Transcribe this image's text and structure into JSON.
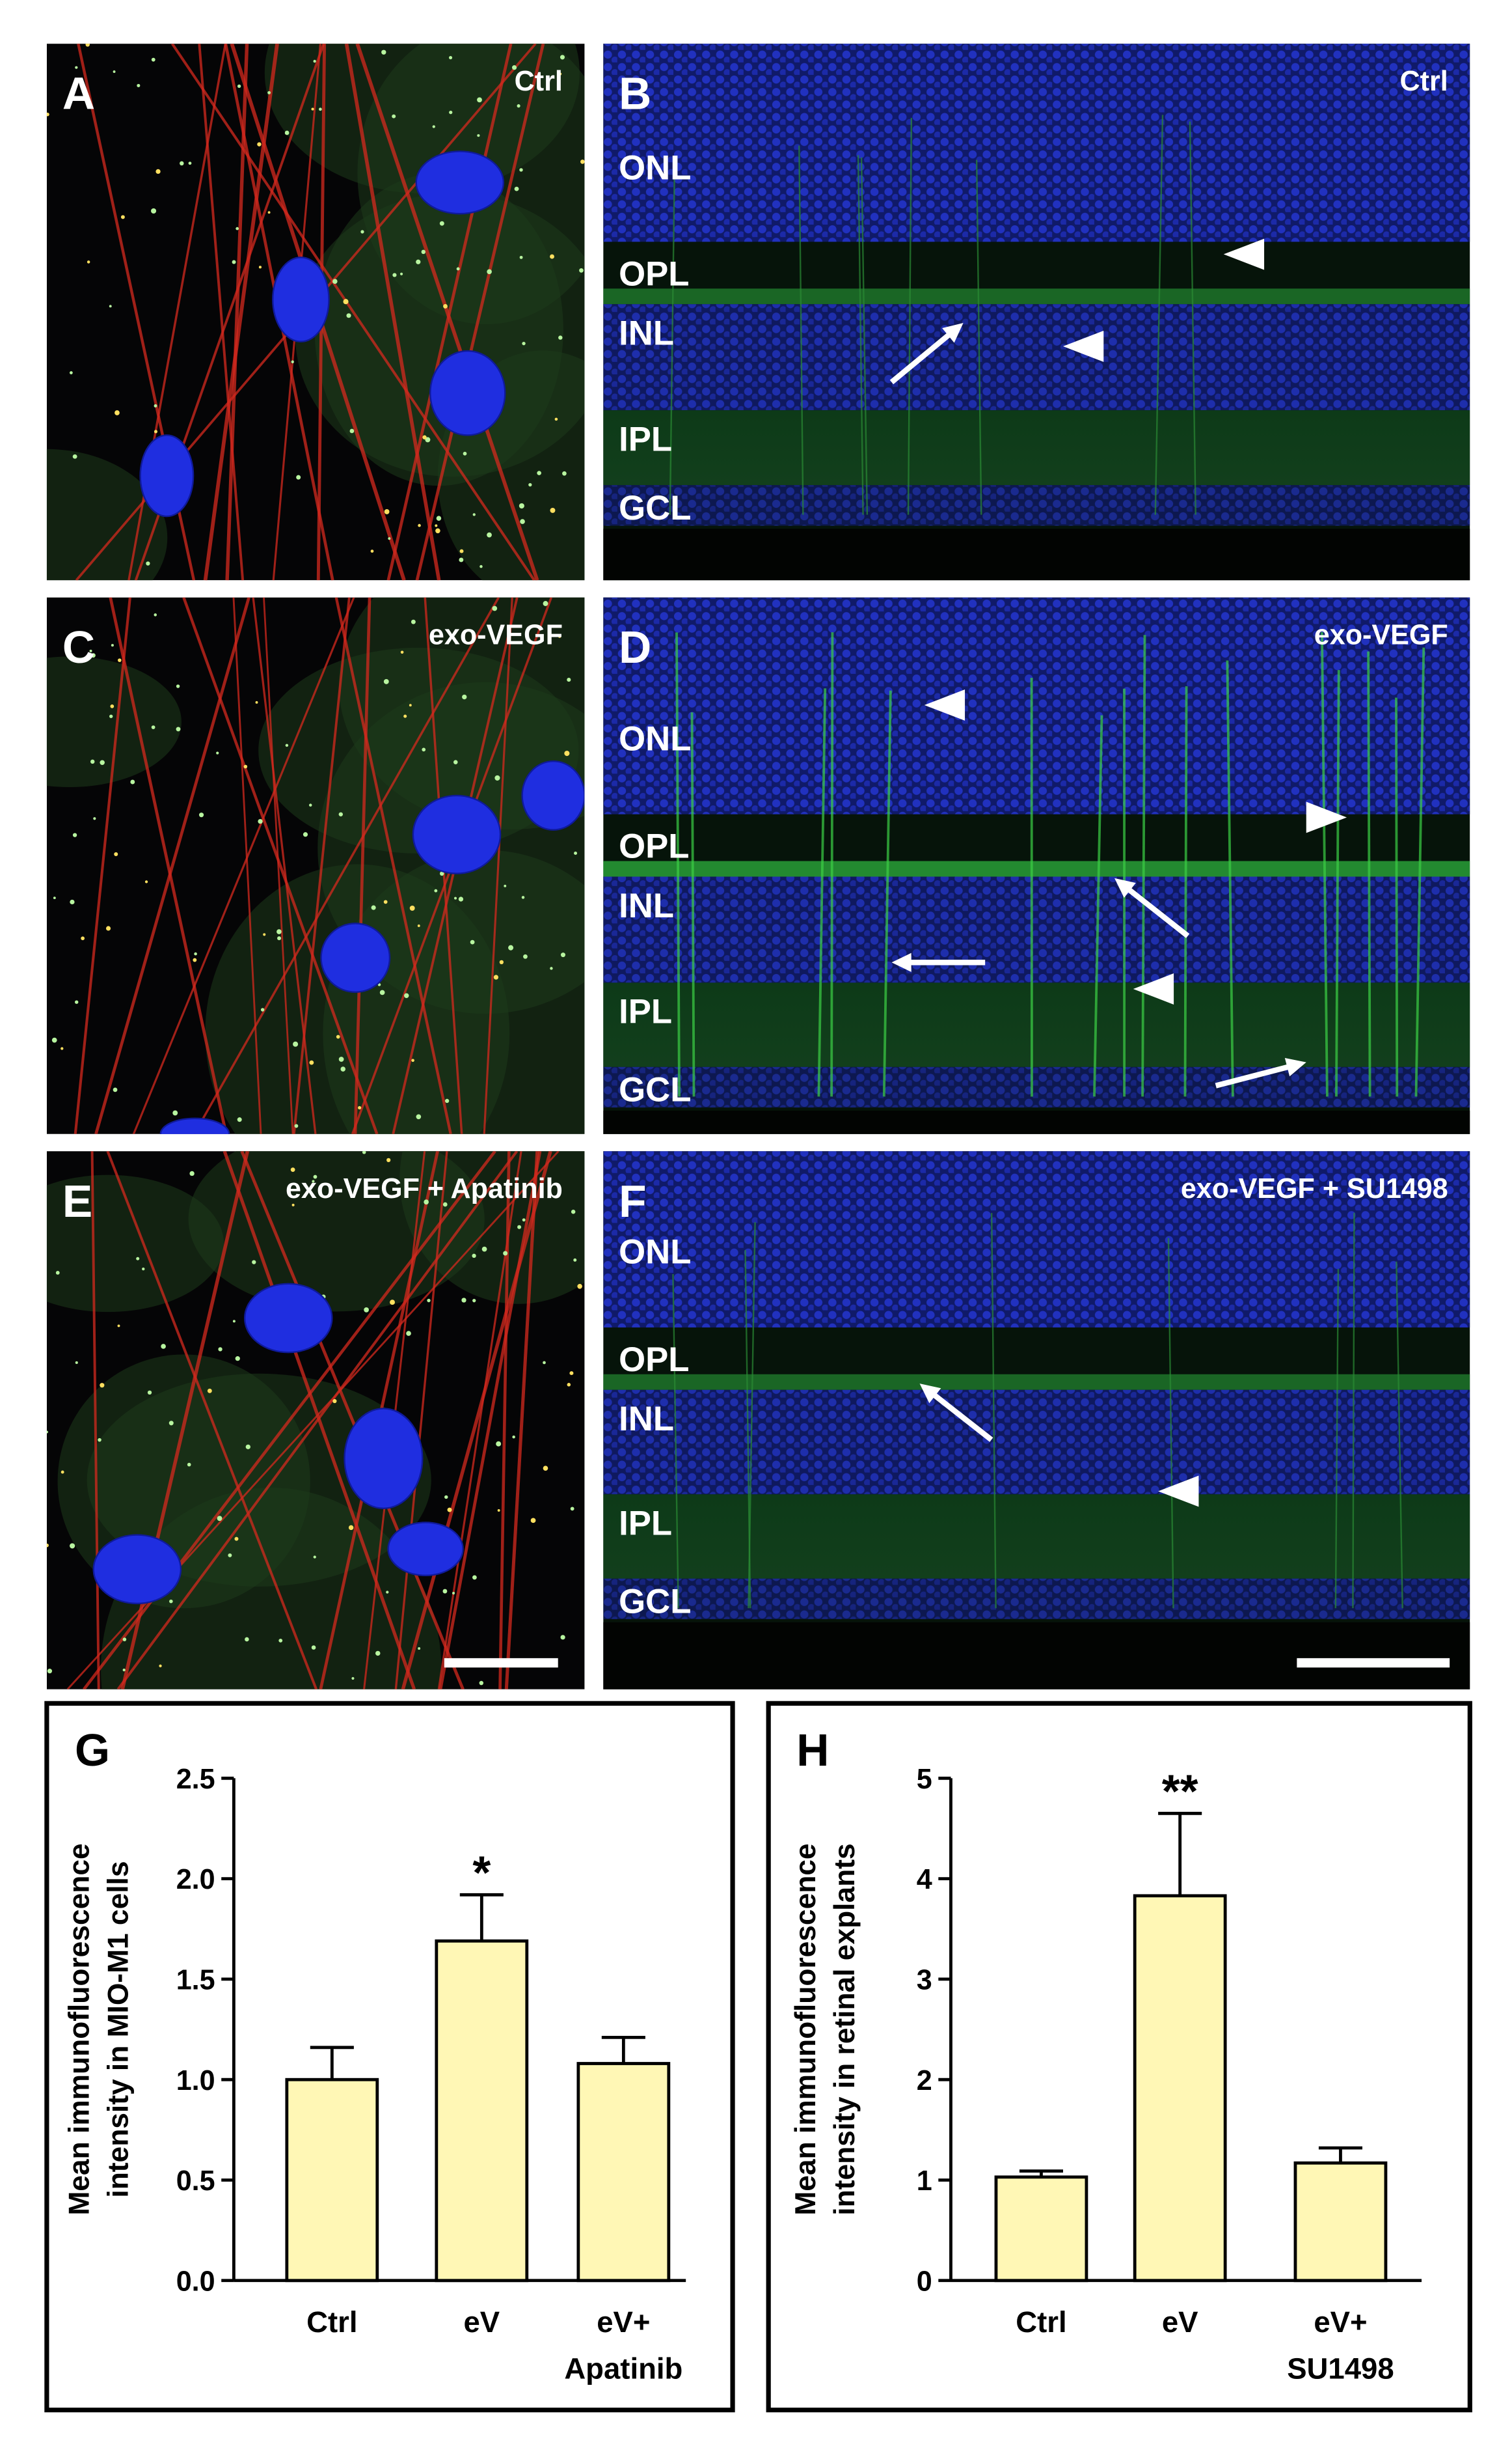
{
  "panels": [
    {
      "letter": "A",
      "condition": "Ctrl"
    },
    {
      "letter": "B",
      "condition": "Ctrl",
      "layers": [
        "ONL",
        "OPL",
        "INL",
        "IPL",
        "GCL"
      ]
    },
    {
      "letter": "C",
      "condition": "exo-VEGF"
    },
    {
      "letter": "D",
      "condition": "exo-VEGF",
      "layers": [
        "ONL",
        "OPL",
        "INL",
        "IPL",
        "GCL"
      ]
    },
    {
      "letter": "E",
      "condition": "exo-VEGF + Apatinib"
    },
    {
      "letter": "F",
      "condition": "exo-VEGF + SU1498",
      "layers": [
        "ONL",
        "OPL",
        "INL",
        "IPL",
        "GCL"
      ]
    }
  ],
  "chart_data": [
    {
      "type": "bar",
      "letter": "G",
      "ylabel": [
        "Mean immunofluorescence",
        "intensity in MIO-M1 cells"
      ],
      "categories": [
        [
          "Ctrl"
        ],
        [
          "eV"
        ],
        [
          "eV+",
          "Apatinib"
        ]
      ],
      "values": [
        1.0,
        1.69,
        1.08
      ],
      "errors": [
        0.16,
        0.23,
        0.13
      ],
      "color": "#fff7b5",
      "ylim": [
        0,
        2.5
      ],
      "yticks": [
        {
          "value": 0,
          "label": "0.0"
        },
        0.5,
        {
          "value": 1,
          "label": "1.0"
        },
        1.5,
        {
          "value": 2,
          "label": "2.0"
        },
        2.5
      ],
      "annotations": [
        {
          "text": "*",
          "category": "eV"
        }
      ]
    },
    {
      "type": "bar",
      "letter": "H",
      "ylabel": [
        "Mean immunofluorescence",
        "intensity in retinal explants"
      ],
      "categories": [
        [
          "Ctrl"
        ],
        [
          "eV"
        ],
        [
          "eV+",
          "SU1498"
        ]
      ],
      "values": [
        1.03,
        3.83,
        1.17
      ],
      "errors": [
        0.06,
        0.82,
        0.15
      ],
      "color": "#fff7b5",
      "ylim": [
        0,
        5
      ],
      "yticks": [
        0,
        1,
        2,
        3,
        4,
        5
      ],
      "annotations": [
        {
          "text": "**",
          "category": "eV"
        }
      ]
    }
  ]
}
